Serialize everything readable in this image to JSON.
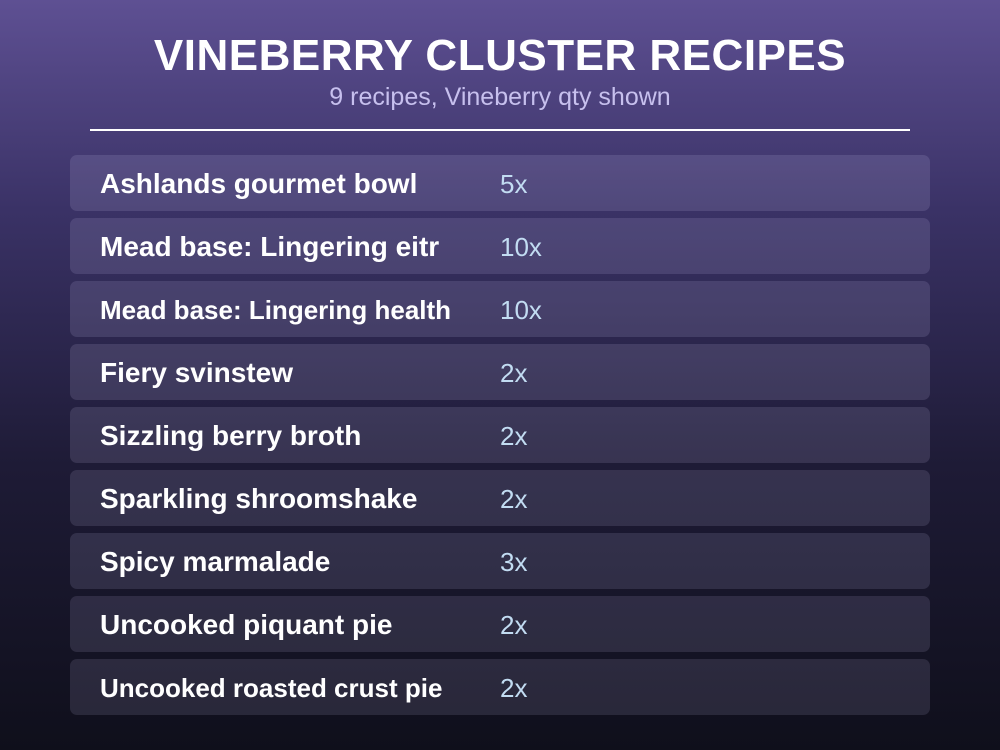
{
  "header": {
    "title": "VINEBERRY CLUSTER RECIPES",
    "subtitle": "9 recipes, Vineberry qty shown"
  },
  "recipes": [
    {
      "name": "Ashlands gourmet bowl",
      "qty": "5x"
    },
    {
      "name": "Mead base: Lingering eitr",
      "qty": "10x"
    },
    {
      "name": "Mead base: Lingering health",
      "qty": "10x"
    },
    {
      "name": "Fiery svinstew",
      "qty": "2x"
    },
    {
      "name": "Sizzling berry broth",
      "qty": "2x"
    },
    {
      "name": "Sparkling shroomshake",
      "qty": "2x"
    },
    {
      "name": "Spicy marmalade",
      "qty": "3x"
    },
    {
      "name": "Uncooked piquant pie",
      "qty": "2x"
    },
    {
      "name": "Uncooked roasted crust pie",
      "qty": "2x"
    }
  ],
  "colors": {
    "title": "#ffffff",
    "subtitle": "#c7c0ee",
    "quantity": "#c2dcf2"
  }
}
